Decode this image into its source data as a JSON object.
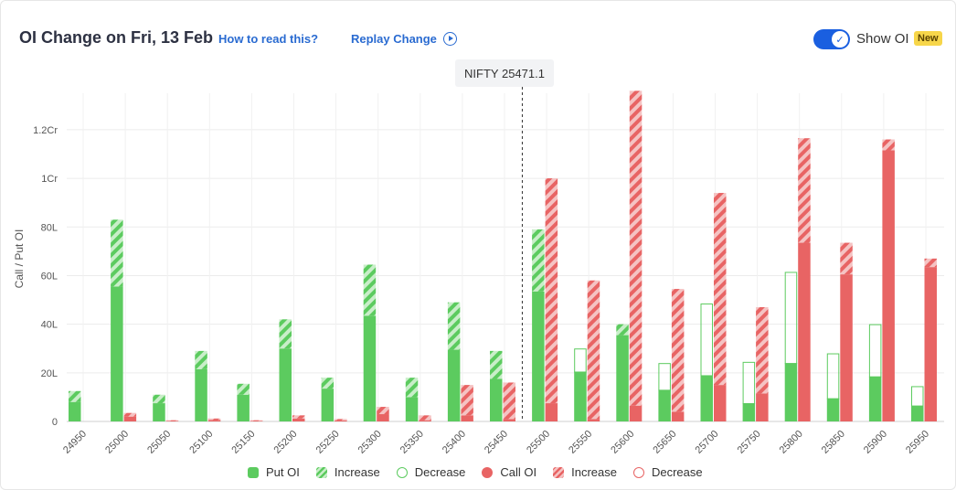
{
  "header": {
    "title": "OI Change on Fri, 13 Feb",
    "how_to_read": "How to read this?",
    "replay": "Replay Change",
    "toggle_label": "Show OI",
    "badge": "New"
  },
  "spot_label": "NIFTY 25471.1",
  "colors": {
    "put": "#5ccb5f",
    "put_light": "#c9eec9",
    "call": "#e86464",
    "call_light": "#f5c3c3"
  },
  "chart_data": {
    "type": "bar",
    "ylabel": "Call / Put OI",
    "ylim": [
      0,
      1.35
    ],
    "yticks": [
      {
        "value": 0,
        "label": "0"
      },
      {
        "value": 0.2,
        "label": "20L"
      },
      {
        "value": 0.4,
        "label": "40L"
      },
      {
        "value": 0.6,
        "label": "60L"
      },
      {
        "value": 0.8,
        "label": "80L"
      },
      {
        "value": 1.0,
        "label": "1Cr"
      },
      {
        "value": 1.2,
        "label": "1.2Cr"
      }
    ],
    "units": "Cr",
    "spot": 25471.1,
    "categories": [
      "24950",
      "25000",
      "25050",
      "25100",
      "25150",
      "25200",
      "25250",
      "25300",
      "25350",
      "25400",
      "25450",
      "25500",
      "25550",
      "25600",
      "25650",
      "25700",
      "25750",
      "25800",
      "25850",
      "25900",
      "25950"
    ],
    "series": [
      {
        "name": "Put OI",
        "total": [
          0.125,
          0.83,
          0.11,
          0.29,
          0.155,
          0.42,
          0.18,
          0.645,
          0.18,
          0.49,
          0.29,
          0.79,
          0.3,
          0.4,
          0.24,
          0.485,
          0.245,
          0.615,
          0.28,
          0.4,
          0.145
        ],
        "base": [
          0.08,
          0.555,
          0.075,
          0.215,
          0.11,
          0.3,
          0.135,
          0.435,
          0.1,
          0.295,
          0.175,
          0.535,
          0.205,
          0.355,
          0.13,
          0.19,
          0.075,
          0.24,
          0.095,
          0.185,
          0.065
        ],
        "change": [
          "increase",
          "increase",
          "increase",
          "increase",
          "increase",
          "increase",
          "increase",
          "increase",
          "increase",
          "increase",
          "increase",
          "increase",
          "decrease",
          "increase",
          "decrease",
          "decrease",
          "decrease",
          "decrease",
          "decrease",
          "decrease",
          "decrease"
        ]
      },
      {
        "name": "Call OI",
        "total": [
          0,
          0.035,
          0.005,
          0.012,
          0.005,
          0.025,
          0.01,
          0.06,
          0.025,
          0.15,
          0.16,
          1.0,
          0.58,
          1.36,
          0.545,
          0.94,
          0.47,
          1.165,
          0.735,
          1.16,
          0.67
        ],
        "base": [
          0,
          0.02,
          0.002,
          0.006,
          0.002,
          0.012,
          0.004,
          0.03,
          0.005,
          0.025,
          0.01,
          0.075,
          0.01,
          0.065,
          0.04,
          0.15,
          0.115,
          0.735,
          0.605,
          1.115,
          0.635
        ],
        "change": [
          "increase",
          "increase",
          "increase",
          "increase",
          "increase",
          "increase",
          "increase",
          "increase",
          "increase",
          "increase",
          "increase",
          "increase",
          "increase",
          "increase",
          "increase",
          "increase",
          "increase",
          "increase",
          "increase",
          "increase",
          "increase"
        ]
      }
    ],
    "legend": {
      "position": "bottom",
      "items": [
        "Put OI",
        "Increase",
        "Decrease",
        "Call OI",
        "Increase",
        "Decrease"
      ]
    }
  }
}
